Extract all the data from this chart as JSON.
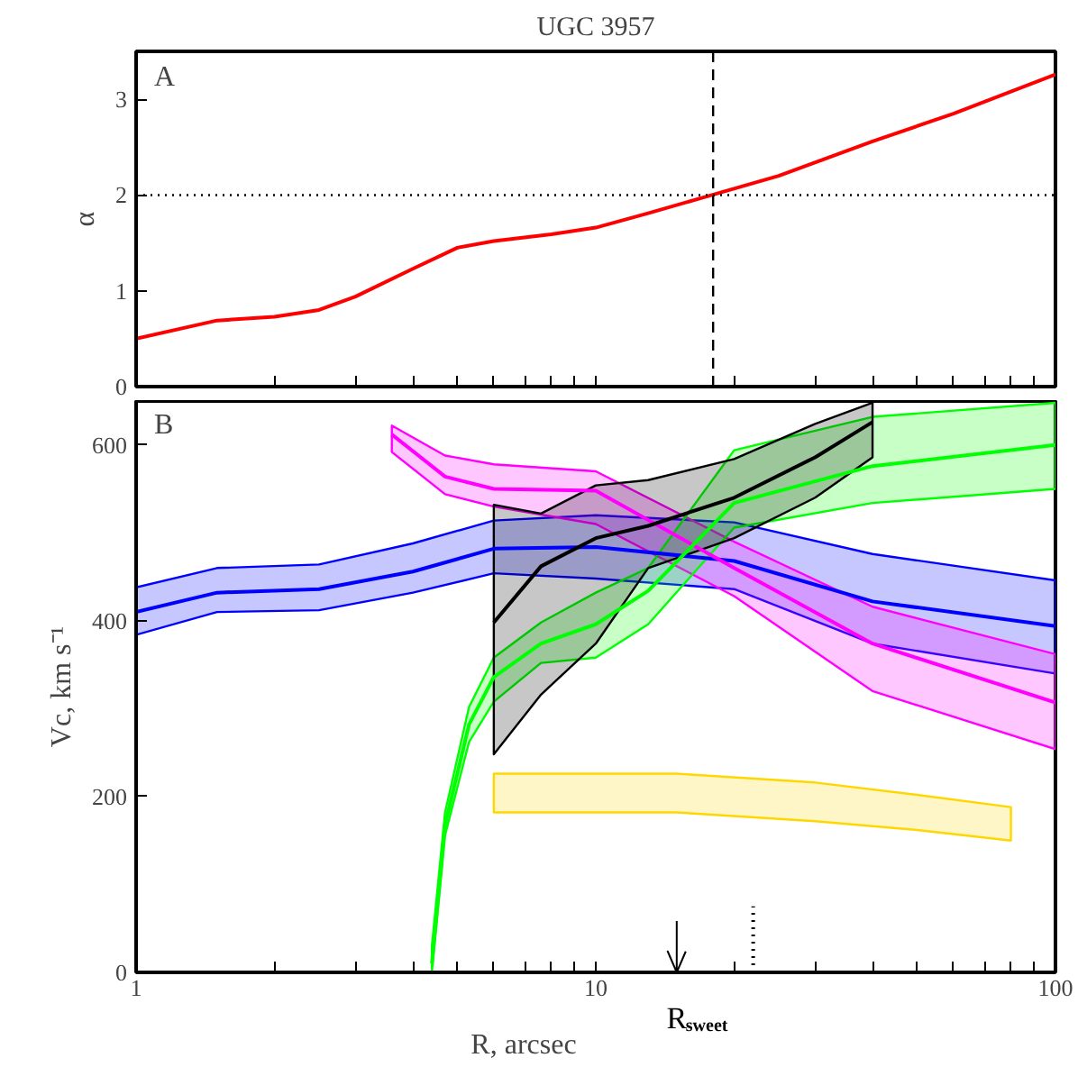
{
  "chart_data": [
    {
      "type": "line",
      "title": "UGC 3957",
      "ylabel": "α",
      "annotations": [
        "A"
      ],
      "xlim": [
        1,
        100
      ],
      "ylim": [
        0,
        3.5
      ],
      "log": "x",
      "tick_labels": "y",
      "grid": false,
      "xticks": [
        1,
        {
          "value": 2,
          "label": null
        },
        {
          "value": 3,
          "label": null
        },
        {
          "value": 4,
          "label": null
        },
        {
          "value": 5,
          "label": null
        },
        {
          "value": 6,
          "label": null
        },
        {
          "value": 7,
          "label": null
        },
        {
          "value": 8,
          "label": null
        },
        {
          "value": 9,
          "label": null
        },
        10,
        {
          "value": 20,
          "label": null
        },
        {
          "value": 30,
          "label": null
        },
        {
          "value": 40,
          "label": null
        },
        {
          "value": 50,
          "label": null
        },
        {
          "value": 60,
          "label": null
        },
        {
          "value": 70,
          "label": null
        },
        {
          "value": 80,
          "label": null
        },
        {
          "value": 90,
          "label": null
        },
        100
      ],
      "yticks": [
        0,
        1,
        2,
        3
      ],
      "ref_lines": [
        {
          "axis": "y",
          "value": 2,
          "line_style": "dotted",
          "color": "#000000"
        },
        {
          "axis": "x",
          "value": 18,
          "line_style": "dashed",
          "color": "#000000"
        }
      ],
      "series": [
        {
          "color": "#ff0000",
          "x": [
            1,
            1.5,
            2,
            2.5,
            3,
            4,
            5,
            6,
            8,
            10,
            13,
            17,
            25,
            40,
            60,
            100
          ],
          "values": [
            0.5,
            0.69,
            0.73,
            0.8,
            0.94,
            1.23,
            1.45,
            1.52,
            1.59,
            1.66,
            1.81,
            1.97,
            2.2,
            2.56,
            2.85,
            3.26
          ]
        }
      ]
    },
    {
      "type": "line",
      "xlabel": "R, arcsec",
      "ylabel": "Vc, km s⁻¹",
      "annotations": [
        "B"
      ],
      "xlim": [
        1,
        100
      ],
      "ylim": [
        0,
        650
      ],
      "log": "x",
      "grid": false,
      "xticks": [
        1,
        {
          "value": 2,
          "label": null
        },
        {
          "value": 3,
          "label": null
        },
        {
          "value": 4,
          "label": null
        },
        {
          "value": 5,
          "label": null
        },
        {
          "value": 6,
          "label": null
        },
        {
          "value": 7,
          "label": null
        },
        {
          "value": 8,
          "label": null
        },
        {
          "value": 9,
          "label": null
        },
        10,
        {
          "value": 20,
          "label": null
        },
        {
          "value": 30,
          "label": null
        },
        {
          "value": 40,
          "label": null
        },
        {
          "value": 50,
          "label": null
        },
        {
          "value": 60,
          "label": null
        },
        {
          "value": 70,
          "label": null
        },
        {
          "value": 80,
          "label": null
        },
        {
          "value": 90,
          "label": null
        },
        100
      ],
      "yticks": [
        0,
        200,
        400,
        600
      ],
      "ref_lines": [
        {
          "axis": "x",
          "value": 15,
          "label": "R$_{sweet}$",
          "line_style": "solid",
          "color": "#000000"
        }
      ],
      "series": [
        {
          "color": "#0000ff",
          "x": [
            1,
            1.5,
            2.5,
            4,
            6,
            10,
            20,
            40,
            100
          ],
          "values": [
            410,
            432,
            436,
            456,
            482,
            484,
            468,
            422,
            394
          ],
          "lower": [
            384,
            410,
            412,
            432,
            454,
            448,
            436,
            374,
            340
          ],
          "upper": [
            438,
            460,
            464,
            488,
            514,
            520,
            512,
            476,
            446
          ]
        },
        {
          "color": "#ff00ff",
          "x": [
            3.6,
            4.7,
            6,
            10,
            20,
            40,
            100
          ],
          "values": [
            612,
            564,
            550,
            548,
            460,
            374,
            307
          ],
          "lower": [
            592,
            544,
            530,
            510,
            428,
            320,
            254
          ],
          "upper": [
            622,
            588,
            578,
            570,
            490,
            416,
            362
          ]
        },
        {
          "color": "#00ff00",
          "x": [
            4.4,
            4.7,
            5.3,
            6,
            7.6,
            10,
            13,
            20,
            40,
            100
          ],
          "values": [
            10,
            168,
            282,
            336,
            374,
            396,
            434,
            534,
            576,
            600
          ],
          "lower": [
            0,
            156,
            262,
            308,
            352,
            358,
            396,
            506,
            534,
            550
          ],
          "upper": [
            30,
            182,
            302,
            358,
            398,
            432,
            460,
            594,
            632,
            648
          ]
        },
        {
          "color": "#000000",
          "x": [
            6,
            7.6,
            10,
            13,
            20,
            30,
            40
          ],
          "values": [
            398,
            462,
            494,
            508,
            540,
            586,
            626
          ],
          "lower": [
            248,
            316,
            374,
            460,
            494,
            540,
            586
          ],
          "upper": [
            532,
            522,
            554,
            560,
            584,
            624,
            648
          ]
        },
        {
          "color": "#ffd700",
          "x": [
            6,
            15,
            30,
            50,
            80
          ],
          "values": [
            null,
            null,
            null,
            null,
            null
          ],
          "lower": [
            182,
            182,
            172,
            162,
            150
          ],
          "upper": [
            226,
            226,
            216,
            202,
            188
          ]
        },
        {
          "color": "#000000",
          "x": [
            22,
            22
          ],
          "values": [
            0,
            75
          ],
          "line_style": "dotted"
        }
      ]
    }
  ]
}
